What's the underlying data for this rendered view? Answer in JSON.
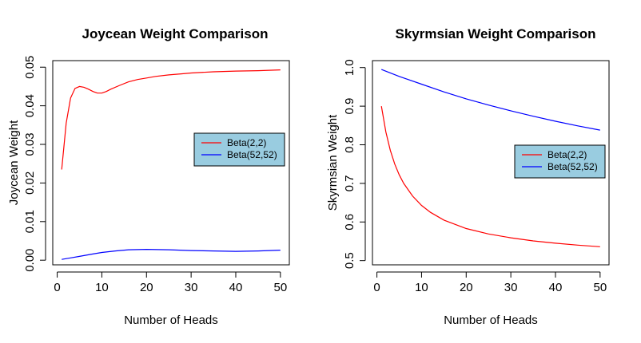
{
  "chart_data": [
    {
      "type": "line",
      "title": "Joycean Weight Comparison",
      "xlabel": "Number of Heads",
      "ylabel": "Joycean Weight",
      "xlim": [
        1,
        50
      ],
      "ylim": [
        0,
        0.05
      ],
      "xticks": [
        0,
        10,
        20,
        30,
        40,
        50
      ],
      "yticks": [
        "0.00",
        "0.01",
        "0.02",
        "0.03",
        "0.04",
        "0.05"
      ],
      "legend": {
        "position": "right",
        "background": "#99cce0"
      },
      "series": [
        {
          "name": "Beta(2,2)",
          "color": "#ff0000",
          "x": [
            1,
            2,
            3,
            4,
            5,
            6,
            7,
            8,
            9,
            10,
            11,
            12,
            14,
            16,
            18,
            20,
            22,
            25,
            28,
            30,
            35,
            40,
            45,
            50
          ],
          "y": [
            0.0235,
            0.0355,
            0.042,
            0.0445,
            0.045,
            0.0448,
            0.0443,
            0.0437,
            0.0433,
            0.0433,
            0.0437,
            0.0443,
            0.0453,
            0.0462,
            0.0468,
            0.0472,
            0.0476,
            0.048,
            0.0483,
            0.0485,
            0.0488,
            0.049,
            0.0491,
            0.0493
          ]
        },
        {
          "name": "Beta(52,52)",
          "color": "#0000ff",
          "x": [
            1,
            3,
            5,
            8,
            10,
            13,
            16,
            20,
            25,
            30,
            35,
            40,
            45,
            50
          ],
          "y": [
            0.0002,
            0.0006,
            0.001,
            0.0016,
            0.002,
            0.0024,
            0.0027,
            0.0028,
            0.0027,
            0.0025,
            0.0024,
            0.0023,
            0.0024,
            0.0026
          ]
        }
      ]
    },
    {
      "type": "line",
      "title": "Skyrmsian Weight Comparison",
      "xlabel": "Number of Heads",
      "ylabel": "Skyrmsian Weight",
      "xlim": [
        1,
        50
      ],
      "ylim": [
        0.5,
        1.0
      ],
      "xticks": [
        0,
        10,
        20,
        30,
        40,
        50
      ],
      "yticks": [
        "0.5",
        "0.6",
        "0.7",
        "0.8",
        "0.9",
        "1.0"
      ],
      "legend": {
        "position": "right",
        "background": "#99cce0"
      },
      "series": [
        {
          "name": "Beta(2,2)",
          "color": "#ff0000",
          "x": [
            1,
            2,
            3,
            4,
            5,
            6,
            8,
            10,
            12,
            15,
            20,
            25,
            30,
            35,
            40,
            45,
            50
          ],
          "y": [
            0.9,
            0.833,
            0.786,
            0.75,
            0.722,
            0.7,
            0.667,
            0.643,
            0.625,
            0.605,
            0.583,
            0.569,
            0.559,
            0.551,
            0.545,
            0.54,
            0.536
          ]
        },
        {
          "name": "Beta(52,52)",
          "color": "#0000ff",
          "x": [
            1,
            5,
            10,
            15,
            20,
            25,
            30,
            35,
            40,
            45,
            50
          ],
          "y": [
            0.995,
            0.977,
            0.957,
            0.937,
            0.919,
            0.903,
            0.888,
            0.874,
            0.861,
            0.849,
            0.838
          ]
        }
      ]
    }
  ]
}
